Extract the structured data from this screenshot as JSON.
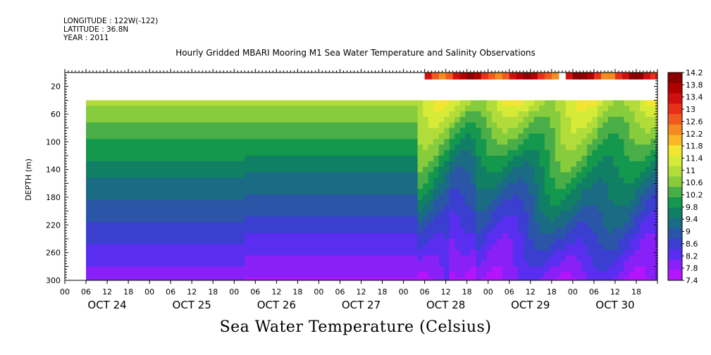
{
  "header": {
    "longitude": "LONGITUDE : 122W(-122)",
    "latitude": "LATITUDE : 36.8N",
    "year": "YEAR : 2011"
  },
  "chart_data": {
    "type": "heatmap",
    "title": "Hourly Gridded MBARI Mooring M1 Sea Water Temperature and Salinity Observations",
    "bottom_title": "Sea Water Temperature (Celsius)",
    "ylabel": "DEPTH (m)",
    "xlabel": "",
    "y_axis": {
      "reversed": true,
      "range": [
        0,
        300
      ],
      "ticks": [
        20,
        60,
        100,
        140,
        180,
        220,
        260,
        300
      ]
    },
    "x_axis": {
      "range_hours": [
        0,
        168
      ],
      "hour_tick_labels": [
        "00",
        "06",
        "12",
        "18",
        "00",
        "06",
        "12",
        "18",
        "00",
        "06",
        "12",
        "18",
        "00",
        "06",
        "12",
        "18",
        "00",
        "06",
        "12",
        "18",
        "00",
        "06",
        "12",
        "18",
        "00",
        "06",
        "12",
        "18"
      ],
      "day_labels": [
        "OCT 24",
        "OCT 25",
        "OCT 26",
        "OCT 27",
        "OCT 28",
        "OCT 29",
        "OCT 30"
      ]
    },
    "colorbar": {
      "labels": [
        "14.2",
        "13.8",
        "13.4",
        "13",
        "12.6",
        "12.2",
        "11.8",
        "11.4",
        "11",
        "10.6",
        "10.2",
        "9.8",
        "9.4",
        "9",
        "8.6",
        "8.2",
        "7.8",
        "7.4"
      ],
      "colors": [
        "#8b0000",
        "#b00000",
        "#d01010",
        "#e83018",
        "#f05a1e",
        "#f58a20",
        "#f7b728",
        "#f2e630",
        "#d6ea38",
        "#b2dc3a",
        "#86cc3c",
        "#4aae48",
        "#14984e",
        "#107f64",
        "#1a6b84",
        "#2b56a8",
        "#3a3fd0",
        "#5a2ef0",
        "#8a20f8",
        "#b514ff"
      ],
      "range": [
        7.4,
        14.2
      ]
    },
    "regions": [
      {
        "start_hour": 6,
        "end_hour": 51,
        "depth_start": 40,
        "depth_end": 300,
        "surface_temp": 11.0,
        "bottom_temp": 7.9
      },
      {
        "start_hour": 51,
        "end_hour": 100,
        "depth_start": 40,
        "depth_end": 300,
        "surface_temp": 11.0,
        "bottom_temp": 7.7
      },
      {
        "start_hour": 100,
        "end_hour": 168,
        "depth_start": 40,
        "depth_end": 300,
        "surface_temp": 11.3,
        "bottom_temp": 7.9,
        "variable": true
      }
    ],
    "surface_layer": {
      "depth_start": 0,
      "depth_end": 10,
      "segments_hours": [
        [
          102,
          140
        ],
        [
          142,
          168
        ]
      ],
      "temp_range": [
        12.4,
        14.0
      ]
    }
  }
}
